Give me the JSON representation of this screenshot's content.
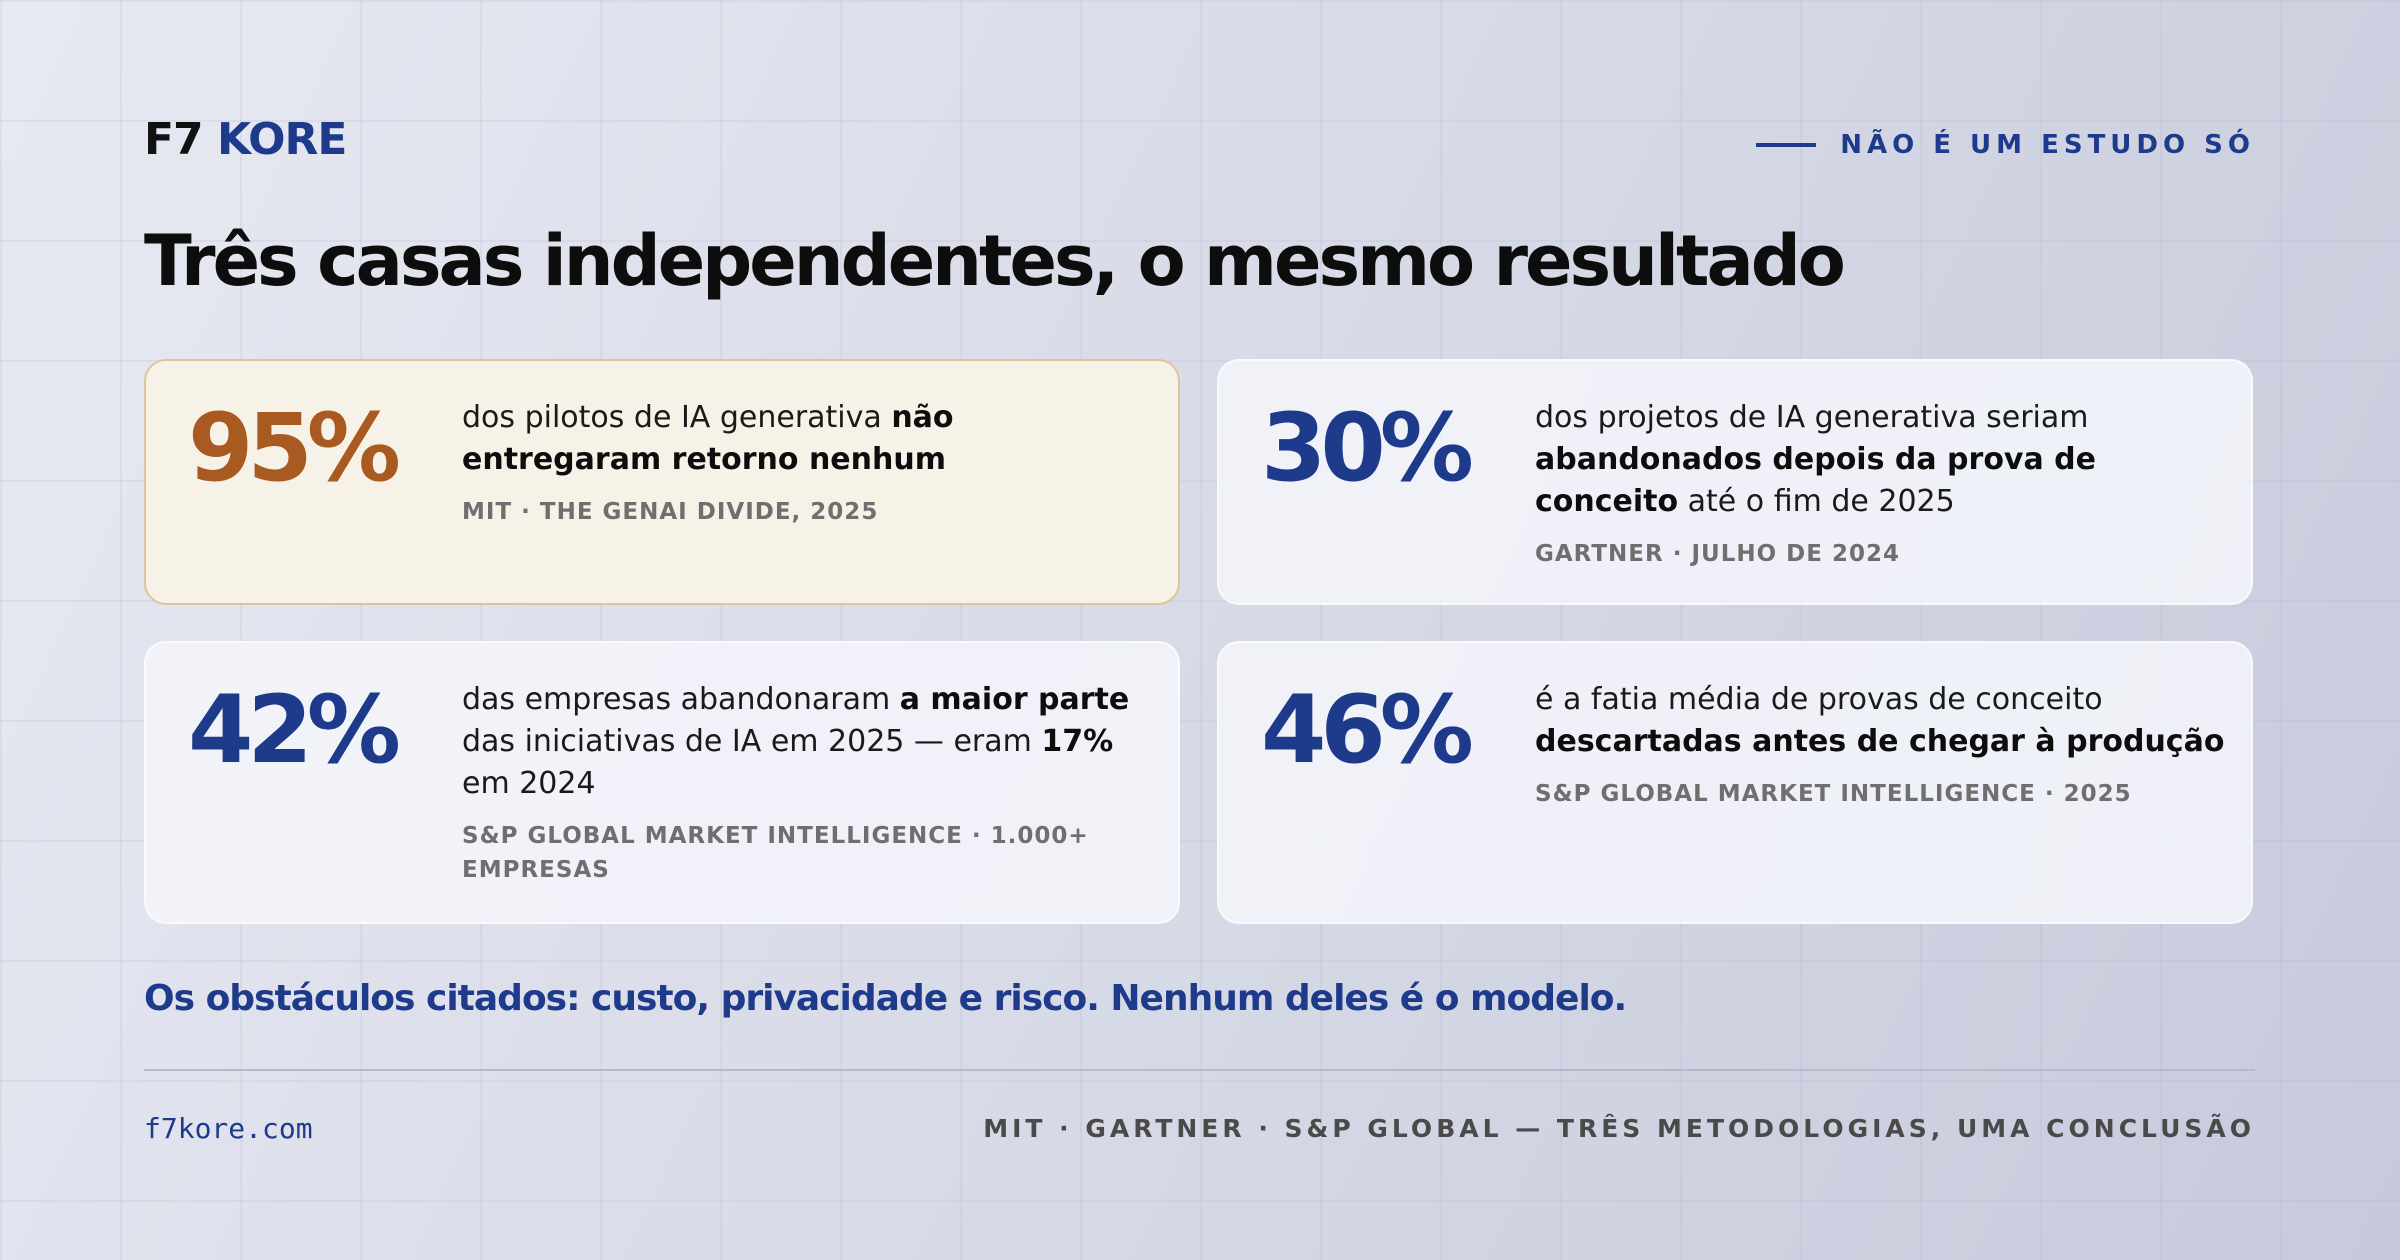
{
  "brand": {
    "part1": "F7",
    "part2": "KORE"
  },
  "tagline": "NÃO É UM ESTUDO SÓ",
  "title": "Três casas independentes, o mesmo resultado",
  "cards": [
    {
      "stat": "95%",
      "highlighted": true,
      "desc": {
        "t1": "dos pilotos de IA generativa ",
        "b1": "não entregaram retorno nenhum"
      },
      "source": "MIT · THE GENAI DIVIDE, 2025"
    },
    {
      "stat": "30%",
      "highlighted": false,
      "desc": {
        "t1": "dos projetos de IA generativa seriam ",
        "b1": "abandonados depois da prova de conceito",
        "t2": " até o fim de 2025"
      },
      "source": "GARTNER · JULHO DE 2024"
    },
    {
      "stat": "42%",
      "highlighted": false,
      "desc": {
        "t1": "das empresas abandonaram ",
        "b1": "a maior parte",
        "t2": " das iniciativas de IA em 2025 — eram ",
        "b2": "17%",
        "t3": " em 2024"
      },
      "source": "S&P GLOBAL MARKET INTELLIGENCE · 1.000+ EMPRESAS"
    },
    {
      "stat": "46%",
      "highlighted": false,
      "desc": {
        "t1": "é a fatia média de provas de conceito ",
        "b1": "descartadas antes de chegar à produção"
      },
      "source": "S&P GLOBAL MARKET INTELLIGENCE · 2025"
    }
  ],
  "callout": "Os obstáculos citados: custo, privacidade e risco. Nenhum deles é o modelo.",
  "footer": {
    "url": "f7kore.com",
    "sources": "MIT · GARTNER · S&P GLOBAL — TRÊS METODOLOGIAS, UMA CONCLUSÃO"
  },
  "colors": {
    "accent": "#1e3a8a",
    "highlight_stat": "#a85a20",
    "highlight_bg": "#f6f2e8",
    "highlight_border": "#dcc59a"
  }
}
